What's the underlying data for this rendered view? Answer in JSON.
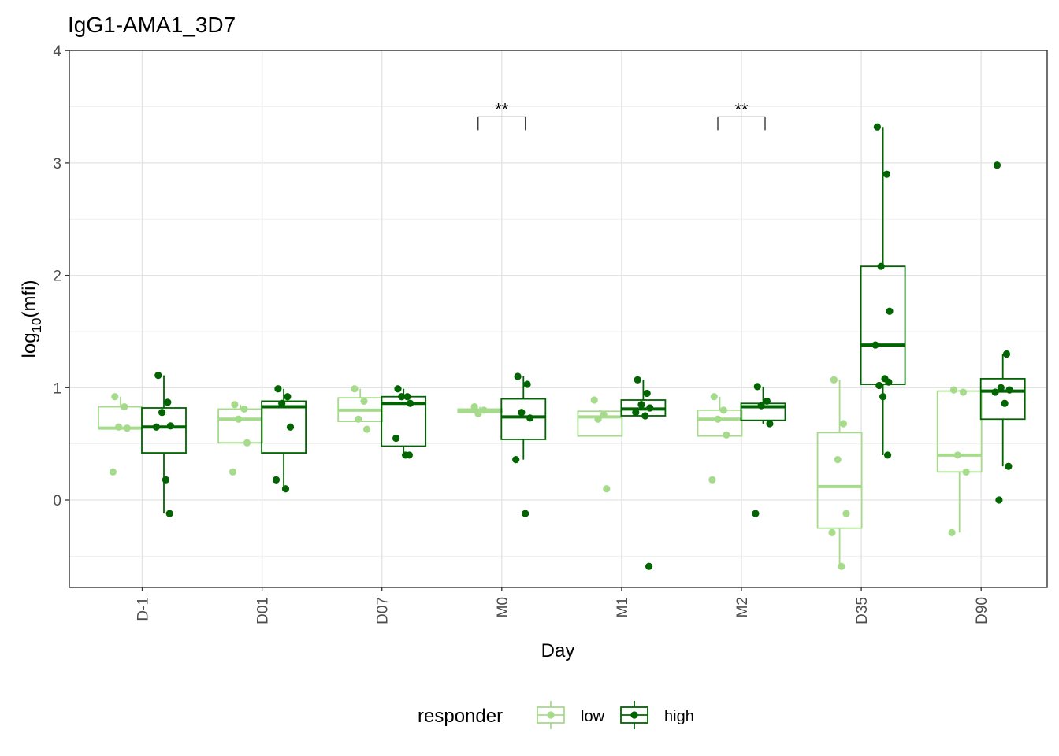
{
  "chart_data": {
    "type": "box",
    "title": "IgG1-AMA1_3D7",
    "xlabel": "Day",
    "ylabel": {
      "base": "log",
      "subscript": "10",
      "arg": "(mfi)"
    },
    "ylim": [
      -0.78,
      4.0
    ],
    "yticks": [
      0,
      1,
      2,
      3,
      4
    ],
    "grid": true,
    "legend": {
      "title": "responder",
      "position": "bottom"
    },
    "categories": [
      "D-1",
      "D01",
      "D07",
      "M0",
      "M1",
      "M2",
      "D35",
      "D90"
    ],
    "series": [
      {
        "name": "low",
        "color": "#a6db8c",
        "boxes": [
          {
            "q1": 0.64,
            "median": 0.64,
            "q3": 0.83,
            "whisker_low": 0.64,
            "whisker_high": 0.92,
            "points": [
              0.92,
              0.83,
              0.65,
              0.64,
              0.25
            ]
          },
          {
            "q1": 0.51,
            "median": 0.72,
            "q3": 0.81,
            "whisker_low": 0.51,
            "whisker_high": 0.85,
            "points": [
              0.85,
              0.81,
              0.72,
              0.51,
              0.25
            ]
          },
          {
            "q1": 0.7,
            "median": 0.8,
            "q3": 0.91,
            "whisker_low": 0.7,
            "whisker_high": 0.99,
            "points": [
              0.99,
              0.88,
              0.72,
              0.63
            ]
          },
          {
            "q1": 0.78,
            "median": 0.79,
            "q3": 0.81,
            "whisker_low": 0.78,
            "whisker_high": 0.83,
            "points": [
              0.83,
              0.8,
              0.77
            ]
          },
          {
            "q1": 0.57,
            "median": 0.74,
            "q3": 0.79,
            "whisker_low": 0.57,
            "whisker_high": 0.8,
            "points": [
              0.89,
              0.76,
              0.72,
              0.1
            ]
          },
          {
            "q1": 0.57,
            "median": 0.72,
            "q3": 0.8,
            "whisker_low": 0.57,
            "whisker_high": 0.92,
            "points": [
              0.92,
              0.8,
              0.72,
              0.58,
              0.18
            ]
          },
          {
            "q1": -0.25,
            "median": 0.12,
            "q3": 0.6,
            "whisker_low": -0.59,
            "whisker_high": 1.07,
            "points": [
              1.07,
              0.68,
              0.36,
              -0.12,
              -0.29,
              -0.59
            ]
          },
          {
            "q1": 0.25,
            "median": 0.4,
            "q3": 0.97,
            "whisker_low": -0.29,
            "whisker_high": 0.98,
            "points": [
              0.98,
              0.96,
              0.4,
              0.25,
              -0.29
            ]
          }
        ]
      },
      {
        "name": "high",
        "color": "#006400",
        "boxes": [
          {
            "q1": 0.42,
            "median": 0.65,
            "q3": 0.82,
            "whisker_low": -0.12,
            "whisker_high": 1.11,
            "points": [
              1.11,
              0.87,
              0.78,
              0.66,
              0.65,
              0.18,
              -0.12
            ]
          },
          {
            "q1": 0.42,
            "median": 0.83,
            "q3": 0.88,
            "whisker_low": 0.1,
            "whisker_high": 0.99,
            "points": [
              0.99,
              0.92,
              0.86,
              0.65,
              0.18,
              0.1
            ]
          },
          {
            "q1": 0.48,
            "median": 0.86,
            "q3": 0.92,
            "whisker_low": 0.4,
            "whisker_high": 0.99,
            "points": [
              0.99,
              0.92,
              0.92,
              0.86,
              0.55,
              0.4,
              0.4
            ]
          },
          {
            "q1": 0.54,
            "median": 0.74,
            "q3": 0.9,
            "whisker_low": 0.36,
            "whisker_high": 1.1,
            "points": [
              1.1,
              1.03,
              0.78,
              0.73,
              0.36,
              -0.12
            ]
          },
          {
            "q1": 0.75,
            "median": 0.81,
            "q3": 0.89,
            "whisker_low": 0.75,
            "whisker_high": 1.07,
            "points": [
              1.07,
              0.95,
              0.85,
              0.82,
              0.78,
              0.75,
              -0.59
            ]
          },
          {
            "q1": 0.71,
            "median": 0.83,
            "q3": 0.86,
            "whisker_low": 0.68,
            "whisker_high": 1.01,
            "points": [
              1.01,
              0.88,
              0.84,
              0.68,
              -0.12
            ]
          },
          {
            "q1": 1.03,
            "median": 1.38,
            "q3": 2.08,
            "whisker_low": 0.4,
            "whisker_high": 3.32,
            "points": [
              3.32,
              2.9,
              2.08,
              1.68,
              1.38,
              1.08,
              1.05,
              1.02,
              0.92,
              0.4
            ]
          },
          {
            "q1": 0.72,
            "median": 0.97,
            "q3": 1.08,
            "whisker_low": 0.3,
            "whisker_high": 1.3,
            "points": [
              2.98,
              1.3,
              1.0,
              0.98,
              0.96,
              0.86,
              0.3,
              0.0
            ]
          }
        ]
      }
    ],
    "annotations": [
      {
        "category": "M0",
        "text": "**",
        "y": 3.41
      },
      {
        "category": "M2",
        "text": "**",
        "y": 3.41
      }
    ]
  }
}
